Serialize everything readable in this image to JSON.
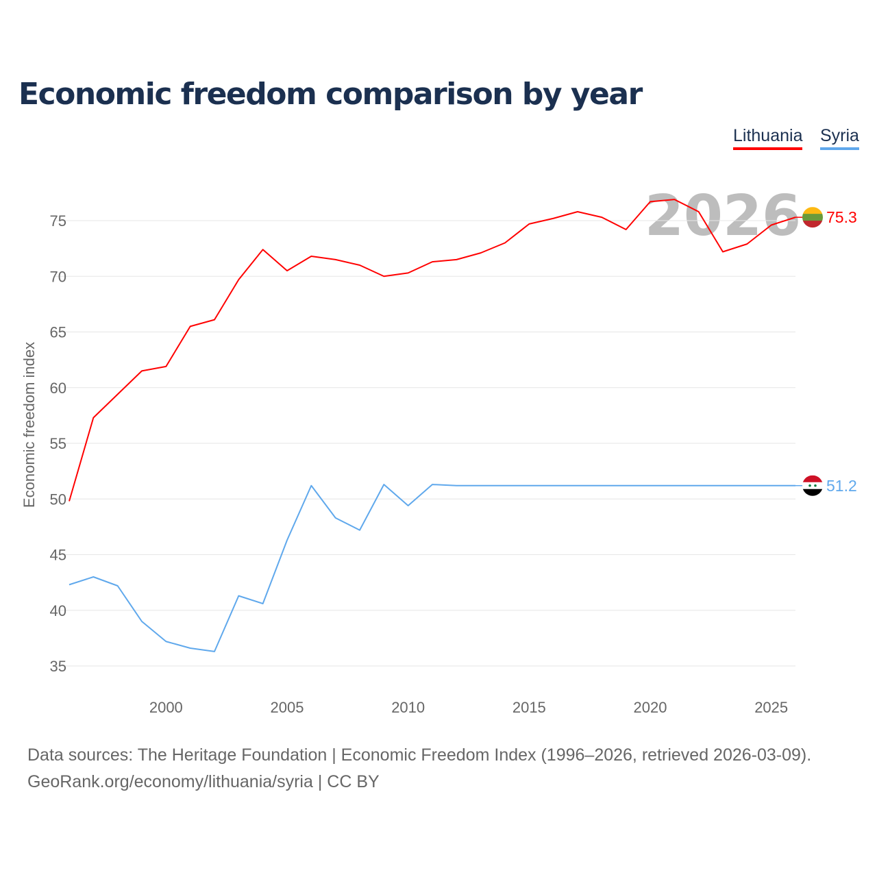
{
  "title": "Economic freedom comparison by year",
  "footer": {
    "line1": "Data sources: The Heritage Foundation | Economic Freedom Index (1996–2026, retrieved 2026-03-09).",
    "line2": "GeoRank.org/economy/lithuania/syria | CC BY"
  },
  "chart_data": {
    "type": "line",
    "title": "Economic freedom comparison by year",
    "xlabel": "",
    "ylabel": "Economic freedom index",
    "xlim": [
      1996,
      2026
    ],
    "ylim": [
      35,
      75
    ],
    "yticks": [
      35,
      40,
      45,
      50,
      55,
      60,
      65,
      70,
      75
    ],
    "xticks": [
      2000,
      2005,
      2010,
      2015,
      2020,
      2025
    ],
    "grid": true,
    "legend_position": "top-right",
    "watermark": "2026",
    "x": [
      1996,
      1997,
      1998,
      1999,
      2000,
      2001,
      2002,
      2003,
      2004,
      2005,
      2006,
      2007,
      2008,
      2009,
      2010,
      2011,
      2012,
      2013,
      2014,
      2015,
      2016,
      2017,
      2018,
      2019,
      2020,
      2021,
      2022,
      2023,
      2024,
      2025,
      2026
    ],
    "series": [
      {
        "name": "Lithuania",
        "color": "#ff0000",
        "end_label": "75.3",
        "flag": "lithuania-flag",
        "values": [
          49.8,
          57.3,
          59.4,
          61.5,
          61.9,
          65.5,
          66.1,
          69.7,
          72.4,
          70.5,
          71.8,
          71.5,
          71.0,
          70.0,
          70.3,
          71.3,
          71.5,
          72.1,
          73.0,
          74.7,
          75.2,
          75.8,
          75.3,
          74.2,
          76.7,
          76.9,
          75.8,
          72.2,
          72.9,
          74.6,
          75.3
        ]
      },
      {
        "name": "Syria",
        "color": "#5fa8ec",
        "end_label": "51.2",
        "flag": "syria-flag",
        "values": [
          42.3,
          43.0,
          42.2,
          39.0,
          37.2,
          36.6,
          36.3,
          41.3,
          40.6,
          46.3,
          51.2,
          48.3,
          47.2,
          51.3,
          49.4,
          51.3,
          51.2,
          51.2,
          51.2,
          51.2,
          51.2,
          51.2,
          51.2,
          51.2,
          51.2,
          51.2,
          51.2,
          51.2,
          51.2,
          51.2,
          51.2
        ]
      }
    ]
  }
}
